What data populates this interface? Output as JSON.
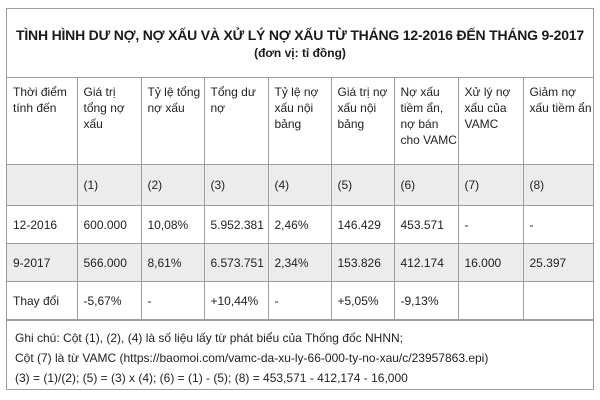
{
  "title": "TÌNH HÌNH DƯ NỢ, NỢ XẤU VÀ XỬ LÝ NỢ XẤU TỪ THÁNG 12-2016 ĐẾN THÁNG 9-2017",
  "subtitle": "(đơn vị: tỉ đồng)",
  "headers": [
    "Thời điểm tính đến",
    "Giá trị tổng nợ xấu",
    "Tỷ lệ tổng nợ xấu",
    "Tổng dư nợ",
    "Tỷ lệ nợ xấu nội bảng",
    "Giá trị nợ xấu nội bảng",
    "Nợ xấu tiềm ẩn, nợ bán cho VAMC",
    "Xử lý nợ xấu của VAMC",
    "Giảm nợ xấu tiềm ẩn"
  ],
  "column_numbers": [
    "",
    "(1)",
    "(2)",
    "(3)",
    "(4)",
    "(5)",
    "(6)",
    "(7)",
    "(8)"
  ],
  "rows": [
    [
      "12-2016",
      "600.000",
      "10,08%",
      "5.952.381",
      "2,46%",
      "146.429",
      "453.571",
      "-",
      "-"
    ],
    [
      "9-2017",
      "566.000",
      "8,61%",
      "6.573.751",
      "2,34%",
      "153.826",
      "412.174",
      "16.000",
      "25.397"
    ],
    [
      "Thay đổi",
      "-5,67%",
      "-",
      "+10,44%",
      "-",
      "+5,05%",
      "-9,13%",
      "",
      ""
    ]
  ],
  "notes": [
    "Ghi chú: Cột (1), (2), (4) là số liệu lấy từ phát biểu của Thống đốc NHNN;",
    "Cột (7) là từ VAMC (https://baomoi.com/vamc-da-xu-ly-66-000-ty-no-xau/c/23957863.epi)",
    "(3) = (1)/(2); (5) = (3) x (4); (6) = (1) - (5); (8) = 453,571 - 412,174 - 16,000"
  ]
}
